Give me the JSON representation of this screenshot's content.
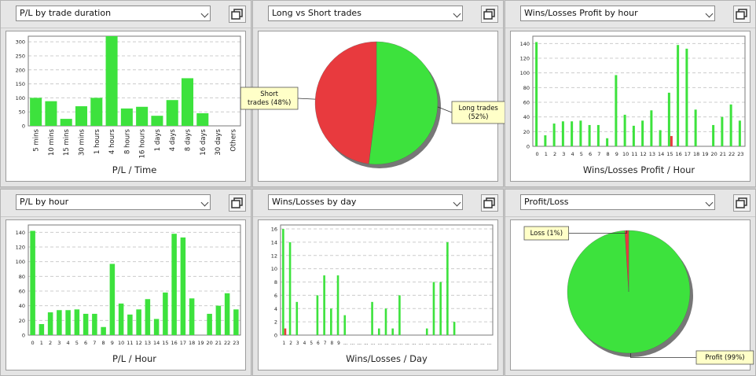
{
  "colors": {
    "green": "#3de23d",
    "red": "#e83a3e",
    "grid": "#cccccc"
  },
  "panels": [
    {
      "select_label": "P/L by trade duration",
      "button_icon": "restore-window-icon",
      "chart_data": {
        "type": "bar",
        "categories": [
          "5 mins",
          "10 mins",
          "15 mins",
          "30 mins",
          "1 hours",
          "4 hours",
          "8 hours",
          "16 hours",
          "1 days",
          "4 days",
          "8 days",
          "16 days",
          "30 days",
          "Others"
        ],
        "values": [
          100,
          88,
          25,
          70,
          100,
          320,
          62,
          68,
          36,
          92,
          170,
          45,
          0,
          0
        ],
        "ylim": [
          0,
          320
        ],
        "yticks": [
          0,
          50,
          100,
          150,
          200,
          250,
          300
        ],
        "xlabel": "P/L / Time",
        "ylabel": "",
        "rotate_ticks": true,
        "grid": true
      }
    },
    {
      "select_label": "Long vs Short trades",
      "button_icon": "restore-window-icon",
      "chart_data": {
        "type": "pie",
        "slices": [
          {
            "label": "Long trades\n(52%)",
            "value": 52,
            "color": "#3de23d"
          },
          {
            "label": "Short\ntrades (48%)",
            "value": 48,
            "color": "#e83a3e"
          }
        ]
      }
    },
    {
      "select_label": "Wins/Losses Profit by hour",
      "button_icon": "restore-window-icon",
      "chart_data": {
        "type": "bar",
        "categories": [
          "0",
          "1",
          "2",
          "3",
          "4",
          "5",
          "6",
          "7",
          "8",
          "9",
          "10",
          "11",
          "12",
          "13",
          "14",
          "15",
          "16",
          "17",
          "18",
          "19",
          "20",
          "21",
          "22",
          "23"
        ],
        "series": [
          {
            "values": [
              142,
              15,
              31,
              34,
              34,
              35,
              29,
              29,
              11,
              97,
              43,
              28,
              35,
              49,
              22,
              73,
              138,
              133,
              50,
              0,
              29,
              40,
              57,
              35
            ],
            "color": "#3de23d"
          },
          {
            "values": [
              0,
              0,
              0,
              0,
              0,
              0,
              0,
              0,
              0,
              0,
              0,
              0,
              0,
              0,
              0,
              14,
              0,
              0,
              0,
              0,
              0,
              0,
              0,
              0
            ],
            "color": "#e83a3e"
          }
        ],
        "ylim": [
          0,
          150
        ],
        "yticks": [
          0,
          20,
          40,
          60,
          80,
          100,
          120,
          140
        ],
        "xlabel": "Wins/Losses Profit / Hour",
        "ylabel": "",
        "grid": true
      }
    },
    {
      "select_label": "P/L by hour",
      "button_icon": "restore-window-icon",
      "chart_data": {
        "type": "bar",
        "categories": [
          "0",
          "1",
          "2",
          "3",
          "4",
          "5",
          "6",
          "7",
          "8",
          "9",
          "10",
          "11",
          "12",
          "13",
          "14",
          "15",
          "16",
          "17",
          "18",
          "19",
          "20",
          "21",
          "22",
          "23"
        ],
        "values": [
          142,
          15,
          31,
          34,
          34,
          35,
          29,
          29,
          11,
          97,
          43,
          28,
          35,
          49,
          22,
          58,
          138,
          133,
          50,
          0,
          29,
          40,
          57,
          35
        ],
        "ylim": [
          0,
          150
        ],
        "yticks": [
          0,
          20,
          40,
          60,
          80,
          100,
          120,
          140
        ],
        "xlabel": "P/L / Hour",
        "ylabel": "",
        "grid": true
      }
    },
    {
      "select_label": "Wins/Losses by day",
      "button_icon": "restore-window-icon",
      "chart_data": {
        "type": "bar",
        "categories": [
          "1",
          "2",
          "3",
          "4",
          "5",
          "6",
          "7",
          "8",
          "9",
          "...",
          "...",
          "...",
          "...",
          "...",
          "...",
          "...",
          "...",
          "...",
          "...",
          "...",
          "...",
          "...",
          "...",
          "...",
          "...",
          "...",
          "...",
          "...",
          "...",
          "...",
          "..."
        ],
        "series": [
          {
            "values": [
              16,
              14,
              5,
              0,
              0,
              6,
              9,
              4,
              9,
              3,
              0,
              0,
              0,
              5,
              1,
              4,
              1,
              6,
              0,
              0,
              0,
              1,
              8,
              8,
              14,
              2,
              0,
              0,
              0,
              0,
              0
            ],
            "color": "#3de23d"
          },
          {
            "values": [
              1,
              0,
              0,
              0,
              0,
              0,
              0,
              0,
              0,
              0,
              0,
              0,
              0,
              0,
              0,
              0,
              0,
              0,
              0,
              0,
              0,
              0,
              0,
              0,
              0,
              0,
              0,
              0,
              0,
              0,
              0
            ],
            "color": "#e83a3e"
          }
        ],
        "ylim": [
          0,
          16.6
        ],
        "yticks": [
          0,
          2,
          4,
          6,
          8,
          10,
          12,
          14,
          16
        ],
        "xlabel": "Wins/Losses / Day",
        "ylabel": "",
        "grid": true
      }
    },
    {
      "select_label": "Profit/Loss",
      "button_icon": "restore-window-icon",
      "chart_data": {
        "type": "pie",
        "slices": [
          {
            "label": "Profit (99%)",
            "value": 99,
            "color": "#3de23d"
          },
          {
            "label": "Loss (1%)",
            "value": 1,
            "color": "#e83a3e"
          }
        ]
      }
    }
  ]
}
